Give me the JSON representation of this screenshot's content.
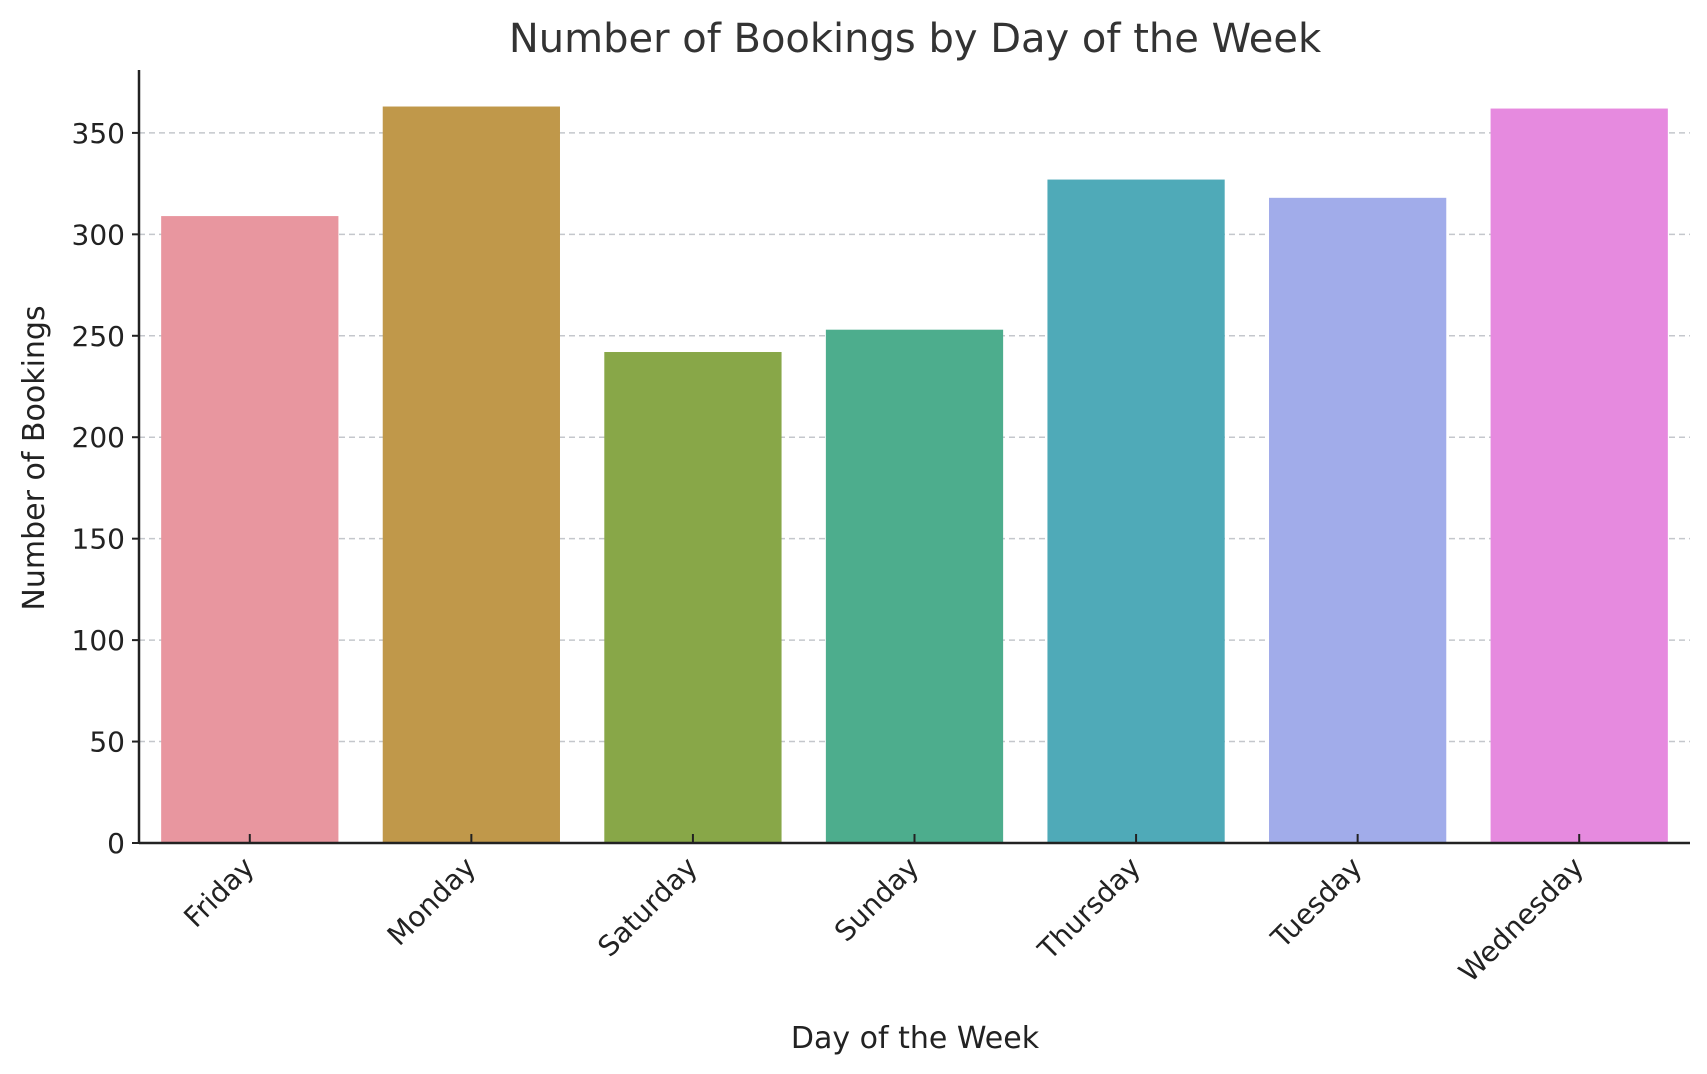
{
  "chart_data": {
    "type": "bar",
    "title": "Number of Bookings by Day of the Week",
    "xlabel": "Day of the Week",
    "ylabel": "Number of Bookings",
    "categories": [
      "Friday",
      "Monday",
      "Saturday",
      "Sunday",
      "Thursday",
      "Tuesday",
      "Wednesday"
    ],
    "values": [
      309,
      363,
      242,
      253,
      327,
      318,
      362
    ],
    "colors": [
      "#e8969f",
      "#c0984a",
      "#88a748",
      "#4dad8d",
      "#4faab8",
      "#a1acea",
      "#e68adf"
    ],
    "ylim": [
      0,
      381
    ],
    "yticks": [
      0,
      50,
      100,
      150,
      200,
      250,
      300,
      350
    ],
    "grid": "horizontal dashed",
    "legend": "none"
  }
}
